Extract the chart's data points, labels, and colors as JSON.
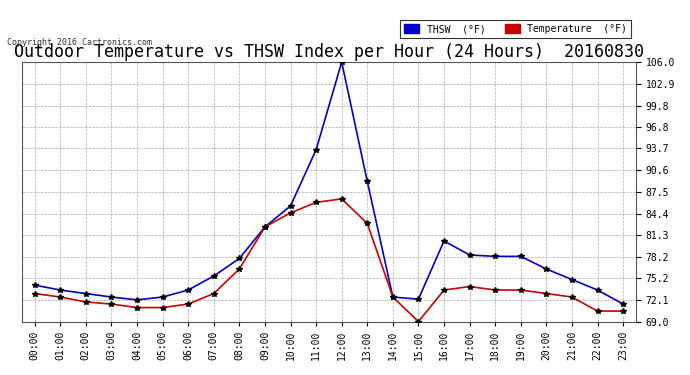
{
  "title": "Outdoor Temperature vs THSW Index per Hour (24 Hours)  20160830",
  "copyright": "Copyright 2016 Cartronics.com",
  "hours": [
    "00:00",
    "01:00",
    "02:00",
    "03:00",
    "04:00",
    "05:00",
    "06:00",
    "07:00",
    "08:00",
    "09:00",
    "10:00",
    "11:00",
    "12:00",
    "13:00",
    "14:00",
    "15:00",
    "16:00",
    "17:00",
    "18:00",
    "19:00",
    "20:00",
    "21:00",
    "22:00",
    "23:00"
  ],
  "thsw": [
    74.2,
    73.5,
    73.0,
    72.5,
    72.1,
    72.5,
    73.5,
    75.5,
    78.0,
    82.5,
    85.5,
    93.5,
    106.0,
    89.0,
    72.5,
    72.2,
    80.5,
    78.5,
    78.3,
    78.3,
    76.5,
    75.0,
    73.5,
    71.5
  ],
  "temperature": [
    73.0,
    72.5,
    71.8,
    71.5,
    71.0,
    71.0,
    71.5,
    73.0,
    76.5,
    82.5,
    84.5,
    86.0,
    86.5,
    83.0,
    72.5,
    69.0,
    73.5,
    74.0,
    73.5,
    73.5,
    73.0,
    72.5,
    70.5,
    70.5
  ],
  "ylim_min": 69.0,
  "ylim_max": 106.0,
  "yticks": [
    69.0,
    72.1,
    75.2,
    78.2,
    81.3,
    84.4,
    87.5,
    90.6,
    93.7,
    96.8,
    99.8,
    102.9,
    106.0
  ],
  "thsw_color": "#0000cc",
  "temp_color": "#cc0000",
  "bg_color": "#ffffff",
  "grid_color": "#aaaaaa",
  "title_fontsize": 12,
  "legend_thsw_label": "THSW  (°F)",
  "legend_temp_label": "Temperature  (°F)"
}
